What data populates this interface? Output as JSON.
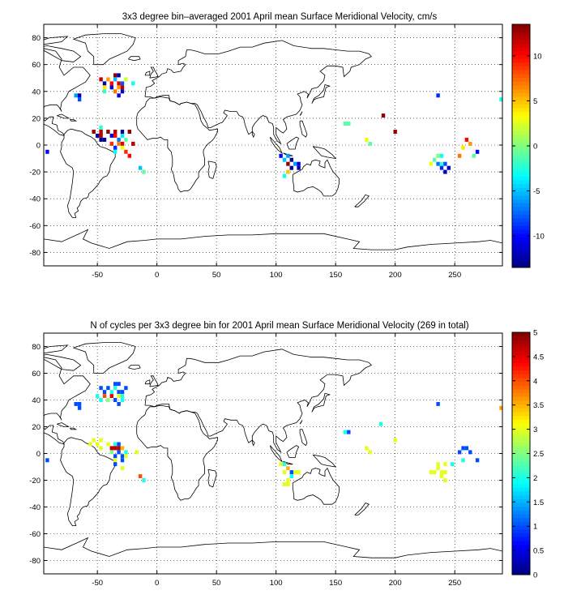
{
  "chart_data": [
    {
      "type": "heatmap",
      "title": "3x3 degree bin–averaged 2001 April mean Surface Meridional Velocity, cm/s",
      "xlim": [
        -95,
        290
      ],
      "ylim": [
        -90,
        90
      ],
      "x_ticks": [
        -50,
        0,
        50,
        100,
        150,
        200,
        250
      ],
      "y_ticks": [
        -80,
        -60,
        -40,
        -20,
        0,
        20,
        40,
        60,
        80
      ],
      "grid": true,
      "colorbar": {
        "range": [
          -13.5,
          13.5
        ],
        "ticks": [
          -10,
          -5,
          0,
          5,
          10
        ],
        "position": "right"
      },
      "cells": [
        {
          "x": -35,
          "y": 52,
          "v": 13
        },
        {
          "x": -32,
          "y": 52,
          "v": -12
        },
        {
          "x": -47,
          "y": 49,
          "v": 12
        },
        {
          "x": -41,
          "y": 49,
          "v": 6
        },
        {
          "x": -35,
          "y": 49,
          "v": -5
        },
        {
          "x": -26,
          "y": 49,
          "v": 2
        },
        {
          "x": -44,
          "y": 46,
          "v": -12
        },
        {
          "x": -38,
          "y": 46,
          "v": 10
        },
        {
          "x": -32,
          "y": 46,
          "v": 11
        },
        {
          "x": -29,
          "y": 46,
          "v": -8
        },
        {
          "x": -20,
          "y": 46,
          "v": -3
        },
        {
          "x": -44,
          "y": 43,
          "v": 4
        },
        {
          "x": -38,
          "y": 43,
          "v": -11
        },
        {
          "x": -32,
          "y": 43,
          "v": 6
        },
        {
          "x": -29,
          "y": 43,
          "v": 12
        },
        {
          "x": -44,
          "y": 40,
          "v": -2
        },
        {
          "x": -35,
          "y": 40,
          "v": 7
        },
        {
          "x": -29,
          "y": 40,
          "v": -11
        },
        {
          "x": -68,
          "y": 37,
          "v": -6
        },
        {
          "x": -65,
          "y": 37,
          "v": -12
        },
        {
          "x": -32,
          "y": 37,
          "v": -11
        },
        {
          "x": -65,
          "y": 34,
          "v": -8
        },
        {
          "x": -23,
          "y": 10,
          "v": 13
        },
        {
          "x": -26,
          "y": 4,
          "v": -1
        },
        {
          "x": -29,
          "y": 1,
          "v": 11
        },
        {
          "x": -20,
          "y": 1,
          "v": 12
        },
        {
          "x": -26,
          "y": -5,
          "v": 9
        },
        {
          "x": -23,
          "y": -8,
          "v": 10
        },
        {
          "x": -14,
          "y": -17,
          "v": -5
        },
        {
          "x": -11,
          "y": -20,
          "v": -1
        },
        {
          "x": -47,
          "y": 13,
          "v": -2
        },
        {
          "x": -53,
          "y": 10,
          "v": 13
        },
        {
          "x": -47,
          "y": 10,
          "v": 12
        },
        {
          "x": -41,
          "y": 10,
          "v": 13
        },
        {
          "x": -35,
          "y": 10,
          "v": 12
        },
        {
          "x": -29,
          "y": 10,
          "v": -13
        },
        {
          "x": -50,
          "y": 7,
          "v": -13
        },
        {
          "x": -47,
          "y": 7,
          "v": 12
        },
        {
          "x": -38,
          "y": 7,
          "v": -11
        },
        {
          "x": -35,
          "y": 7,
          "v": 10
        },
        {
          "x": -29,
          "y": 7,
          "v": -4
        },
        {
          "x": -47,
          "y": 4,
          "v": -13
        },
        {
          "x": -44,
          "y": 4,
          "v": -13
        },
        {
          "x": -32,
          "y": 4,
          "v": -7
        },
        {
          "x": -38,
          "y": 1,
          "v": 9
        },
        {
          "x": -32,
          "y": 1,
          "v": 7
        },
        {
          "x": -35,
          "y": -2,
          "v": -9
        },
        {
          "x": -29,
          "y": -2,
          "v": 3
        },
        {
          "x": -35,
          "y": -5,
          "v": -3
        },
        {
          "x": -92,
          "y": -5,
          "v": -10
        },
        {
          "x": 190,
          "y": 22,
          "v": 13
        },
        {
          "x": 200,
          "y": 10,
          "v": 13
        },
        {
          "x": 158,
          "y": 16,
          "v": -1
        },
        {
          "x": 161,
          "y": 16,
          "v": -1
        },
        {
          "x": 176,
          "y": 4,
          "v": 3
        },
        {
          "x": 179,
          "y": 1,
          "v": -1
        },
        {
          "x": 236,
          "y": 37,
          "v": -9
        },
        {
          "x": 289,
          "y": 34,
          "v": -3
        },
        {
          "x": 260,
          "y": 4,
          "v": 10
        },
        {
          "x": 263,
          "y": 1,
          "v": 6
        },
        {
          "x": 257,
          "y": -2,
          "v": 4
        },
        {
          "x": 269,
          "y": -5,
          "v": -10
        },
        {
          "x": 254,
          "y": -8,
          "v": 7
        },
        {
          "x": 266,
          "y": -8,
          "v": -1
        },
        {
          "x": 236,
          "y": -8,
          "v": 0
        },
        {
          "x": 239,
          "y": -8,
          "v": -3
        },
        {
          "x": 233,
          "y": -11,
          "v": -1
        },
        {
          "x": 230,
          "y": -14,
          "v": 3
        },
        {
          "x": 236,
          "y": -14,
          "v": -7
        },
        {
          "x": 239,
          "y": -14,
          "v": -2
        },
        {
          "x": 242,
          "y": -14,
          "v": -8
        },
        {
          "x": 239,
          "y": -17,
          "v": -9
        },
        {
          "x": 245,
          "y": -17,
          "v": -12
        },
        {
          "x": 242,
          "y": -20,
          "v": -12
        },
        {
          "x": 104,
          "y": -8,
          "v": -10
        },
        {
          "x": 110,
          "y": -8,
          "v": -6
        },
        {
          "x": 107,
          "y": -11,
          "v": -5
        },
        {
          "x": 113,
          "y": -11,
          "v": -13
        },
        {
          "x": 110,
          "y": -14,
          "v": 13
        },
        {
          "x": 116,
          "y": -14,
          "v": -6
        },
        {
          "x": 119,
          "y": -14,
          "v": -11
        },
        {
          "x": 113,
          "y": -17,
          "v": -13
        },
        {
          "x": 119,
          "y": -17,
          "v": -12
        },
        {
          "x": 110,
          "y": -20,
          "v": 5
        },
        {
          "x": 107,
          "y": -23,
          "v": -3
        }
      ]
    },
    {
      "type": "heatmap",
      "title": "N of cycles per 3x3 degree bin for 2001 April mean Surface Meridional Velocity (269 in total)",
      "xlim": [
        -95,
        290
      ],
      "ylim": [
        -90,
        90
      ],
      "x_ticks": [
        -50,
        0,
        50,
        100,
        150,
        200,
        250
      ],
      "y_ticks": [
        -80,
        -60,
        -40,
        -20,
        0,
        20,
        40,
        60,
        80
      ],
      "grid": true,
      "colorbar": {
        "range": [
          0,
          5
        ],
        "ticks": [
          0,
          0.5,
          1,
          1.5,
          2,
          2.5,
          3,
          3.5,
          4,
          4.5,
          5
        ],
        "position": "right"
      },
      "cells": [
        {
          "x": -35,
          "y": 52,
          "v": 1
        },
        {
          "x": -32,
          "y": 52,
          "v": 1
        },
        {
          "x": -47,
          "y": 49,
          "v": 1
        },
        {
          "x": -41,
          "y": 49,
          "v": 1
        },
        {
          "x": -35,
          "y": 49,
          "v": 2
        },
        {
          "x": -26,
          "y": 49,
          "v": 1
        },
        {
          "x": -44,
          "y": 46,
          "v": 1
        },
        {
          "x": -38,
          "y": 46,
          "v": 2
        },
        {
          "x": -32,
          "y": 46,
          "v": 1
        },
        {
          "x": -29,
          "y": 46,
          "v": 1
        },
        {
          "x": -50,
          "y": 43,
          "v": 2
        },
        {
          "x": -44,
          "y": 43,
          "v": 4
        },
        {
          "x": -38,
          "y": 43,
          "v": 4.5
        },
        {
          "x": -32,
          "y": 43,
          "v": 3
        },
        {
          "x": -29,
          "y": 43,
          "v": 2
        },
        {
          "x": -47,
          "y": 40,
          "v": 2
        },
        {
          "x": -41,
          "y": 40,
          "v": 2.5
        },
        {
          "x": -35,
          "y": 40,
          "v": 1
        },
        {
          "x": -29,
          "y": 40,
          "v": 2
        },
        {
          "x": -68,
          "y": 37,
          "v": 1
        },
        {
          "x": -65,
          "y": 37,
          "v": 1
        },
        {
          "x": -32,
          "y": 37,
          "v": 1
        },
        {
          "x": -65,
          "y": 34,
          "v": 1
        },
        {
          "x": -53,
          "y": 10,
          "v": 3
        },
        {
          "x": -47,
          "y": 10,
          "v": 3
        },
        {
          "x": -56,
          "y": 7,
          "v": 3
        },
        {
          "x": -50,
          "y": 7,
          "v": 3
        },
        {
          "x": -41,
          "y": 7,
          "v": 3
        },
        {
          "x": -35,
          "y": 7,
          "v": 2
        },
        {
          "x": -32,
          "y": 7,
          "v": 1
        },
        {
          "x": -47,
          "y": 4,
          "v": 3
        },
        {
          "x": -38,
          "y": 4,
          "v": 4.7
        },
        {
          "x": -35,
          "y": 4,
          "v": 4.7
        },
        {
          "x": -32,
          "y": 4,
          "v": 4.7
        },
        {
          "x": -29,
          "y": 4,
          "v": 3.5
        },
        {
          "x": -38,
          "y": 1,
          "v": 2.5
        },
        {
          "x": -32,
          "y": 1,
          "v": 1
        },
        {
          "x": -26,
          "y": 1,
          "v": 2
        },
        {
          "x": -17,
          "y": 1,
          "v": 3
        },
        {
          "x": -35,
          "y": -2,
          "v": 1
        },
        {
          "x": -29,
          "y": -2,
          "v": 1
        },
        {
          "x": -26,
          "y": -2,
          "v": 3
        },
        {
          "x": -35,
          "y": -5,
          "v": 3
        },
        {
          "x": -29,
          "y": -5,
          "v": 1
        },
        {
          "x": -35,
          "y": -8,
          "v": 1
        },
        {
          "x": -29,
          "y": -11,
          "v": 3
        },
        {
          "x": -14,
          "y": -17,
          "v": 4
        },
        {
          "x": -11,
          "y": -20,
          "v": 2
        },
        {
          "x": -92,
          "y": -5,
          "v": 1
        },
        {
          "x": 188,
          "y": 22,
          "v": 2
        },
        {
          "x": 200,
          "y": 10,
          "v": 3
        },
        {
          "x": 158,
          "y": 16,
          "v": 2
        },
        {
          "x": 161,
          "y": 16,
          "v": 1
        },
        {
          "x": 176,
          "y": 4,
          "v": 3
        },
        {
          "x": 179,
          "y": 1,
          "v": 3
        },
        {
          "x": 236,
          "y": 37,
          "v": 1
        },
        {
          "x": 289,
          "y": 34,
          "v": 3.6
        },
        {
          "x": 257,
          "y": 4,
          "v": 1
        },
        {
          "x": 260,
          "y": 4,
          "v": 1
        },
        {
          "x": 254,
          "y": 1,
          "v": 1
        },
        {
          "x": 263,
          "y": 1,
          "v": 1
        },
        {
          "x": 269,
          "y": -5,
          "v": 1
        },
        {
          "x": 257,
          "y": -5,
          "v": 2
        },
        {
          "x": 236,
          "y": -8,
          "v": 3
        },
        {
          "x": 242,
          "y": -8,
          "v": 3
        },
        {
          "x": 248,
          "y": -8,
          "v": 2
        },
        {
          "x": 230,
          "y": -14,
          "v": 3
        },
        {
          "x": 233,
          "y": -14,
          "v": 3
        },
        {
          "x": 236,
          "y": -11,
          "v": 3
        },
        {
          "x": 239,
          "y": -14,
          "v": 3
        },
        {
          "x": 242,
          "y": -14,
          "v": 3
        },
        {
          "x": 239,
          "y": -17,
          "v": 3
        },
        {
          "x": 242,
          "y": -20,
          "v": 3
        },
        {
          "x": 104,
          "y": -8,
          "v": 3
        },
        {
          "x": 107,
          "y": -8,
          "v": 2
        },
        {
          "x": 110,
          "y": -11,
          "v": 3.5
        },
        {
          "x": 107,
          "y": -14,
          "v": 3
        },
        {
          "x": 113,
          "y": -14,
          "v": 1
        },
        {
          "x": 116,
          "y": -14,
          "v": 3
        },
        {
          "x": 119,
          "y": -14,
          "v": 3
        },
        {
          "x": 113,
          "y": -17,
          "v": 2
        },
        {
          "x": 110,
          "y": -20,
          "v": 3
        },
        {
          "x": 107,
          "y": -23,
          "v": 3
        },
        {
          "x": 110,
          "y": -23,
          "v": 3
        }
      ]
    }
  ]
}
